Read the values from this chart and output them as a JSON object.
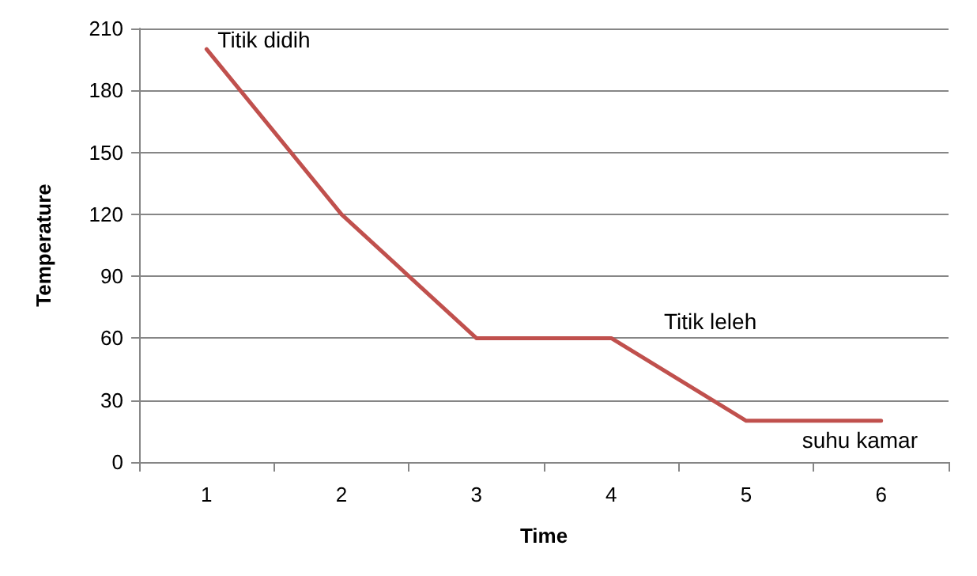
{
  "chart_data": {
    "type": "line",
    "xlabel": "Time",
    "ylabel": "Temperature",
    "categories": [
      "1",
      "2",
      "3",
      "4",
      "5",
      "6"
    ],
    "series": [
      {
        "color": "#c0504d",
        "values": [
          200,
          120,
          60,
          60,
          20,
          20
        ]
      }
    ],
    "ylim": [
      0,
      210
    ],
    "yticks": [
      0,
      30,
      60,
      90,
      120,
      150,
      180,
      210
    ],
    "grid": "y",
    "marker": "none",
    "line_style": "solid",
    "annotations": [
      {
        "text": "Titik didih",
        "x": "1",
        "y": 200
      },
      "Titik leleh",
      {
        "text": "suhu kamar",
        "x": "6",
        "y": 20
      }
    ]
  }
}
